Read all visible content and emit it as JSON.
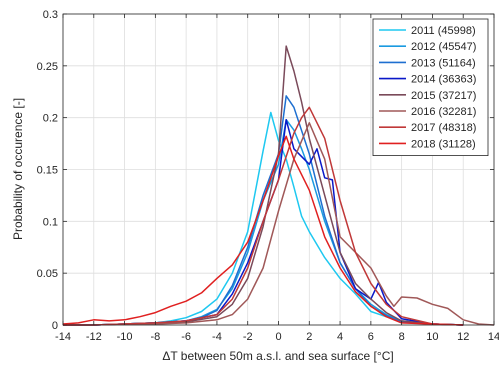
{
  "chart_data": {
    "type": "line",
    "title": "",
    "xlabel": "ΔT between 50m a.s.l. and sea surface [°C]",
    "ylabel": "Probability of occurence [-]",
    "xlim": [
      -14,
      14
    ],
    "ylim": [
      0,
      0.3
    ],
    "grid": true,
    "legend_position": "top-right",
    "x_ticks": [
      -14,
      -12,
      -10,
      -8,
      -6,
      -4,
      -2,
      0,
      2,
      4,
      6,
      8,
      10,
      12,
      14
    ],
    "y_ticks": [
      0,
      0.05,
      0.1,
      0.15,
      0.2,
      0.25,
      0.3
    ],
    "x_tick_labels": [
      "-14",
      "-12",
      "-10",
      "-8",
      "-6",
      "-4",
      "-2",
      "0",
      "2",
      "4",
      "6",
      "8",
      "10",
      "12",
      "14"
    ],
    "y_tick_labels": [
      "0",
      "0.05",
      "0.1",
      "0.15",
      "0.2",
      "0.25",
      "0.3"
    ],
    "series": [
      {
        "name": "2011 (45998)",
        "color": "#1ec8f0",
        "x": [
          -14,
          -12,
          -10,
          -8,
          -7,
          -6,
          -5,
          -4,
          -3,
          -2,
          -1,
          -0.5,
          0,
          0.5,
          1,
          1.5,
          2,
          3,
          4,
          5,
          6,
          7,
          8,
          10,
          12
        ],
        "y": [
          0,
          0,
          0.001,
          0.002,
          0.004,
          0.007,
          0.013,
          0.025,
          0.05,
          0.09,
          0.168,
          0.205,
          0.178,
          0.16,
          0.133,
          0.105,
          0.09,
          0.065,
          0.045,
          0.03,
          0.013,
          0.008,
          0.003,
          0.001,
          0
        ]
      },
      {
        "name": "2012 (45547)",
        "color": "#1a9ae0",
        "x": [
          -14,
          -12,
          -10,
          -8,
          -6,
          -5,
          -4,
          -3,
          -2,
          -1,
          0,
          0.5,
          1,
          1.5,
          2,
          3,
          4,
          5,
          6,
          7,
          8,
          10,
          12
        ],
        "y": [
          0,
          0,
          0.001,
          0.002,
          0.004,
          0.008,
          0.015,
          0.035,
          0.07,
          0.12,
          0.155,
          0.198,
          0.188,
          0.17,
          0.15,
          0.1,
          0.06,
          0.035,
          0.02,
          0.01,
          0.004,
          0.001,
          0
        ]
      },
      {
        "name": "2013 (51164)",
        "color": "#1e6fd0",
        "x": [
          -14,
          -12,
          -10,
          -8,
          -6,
          -5,
          -4,
          -3,
          -2,
          -1,
          0,
          0.5,
          1,
          2,
          3,
          4,
          5,
          6,
          7,
          8,
          10,
          12
        ],
        "y": [
          0,
          0,
          0.001,
          0.002,
          0.004,
          0.007,
          0.014,
          0.038,
          0.075,
          0.125,
          0.165,
          0.221,
          0.21,
          0.165,
          0.105,
          0.06,
          0.035,
          0.018,
          0.009,
          0.003,
          0.001,
          0
        ]
      },
      {
        "name": "2014 (36363)",
        "color": "#0a18c8",
        "x": [
          -14,
          -12,
          -10,
          -8,
          -6,
          -4,
          -3,
          -2,
          -1,
          0,
          0.5,
          1,
          2,
          2.5,
          3,
          3.5,
          4,
          5,
          6,
          6.5,
          7,
          8,
          10,
          12
        ],
        "y": [
          0,
          0,
          0.001,
          0.002,
          0.004,
          0.01,
          0.03,
          0.06,
          0.1,
          0.14,
          0.198,
          0.17,
          0.155,
          0.17,
          0.142,
          0.14,
          0.07,
          0.035,
          0.025,
          0.041,
          0.022,
          0.006,
          0.001,
          0
        ]
      },
      {
        "name": "2015 (37217)",
        "color": "#7a4a5a",
        "x": [
          -14,
          -12,
          -10,
          -8,
          -6,
          -4,
          -3,
          -2,
          -1,
          0,
          0.5,
          1,
          1.5,
          2,
          3,
          4,
          5,
          6,
          7,
          8,
          10,
          12
        ],
        "y": [
          0,
          0,
          0.001,
          0.002,
          0.003,
          0.008,
          0.02,
          0.045,
          0.095,
          0.165,
          0.269,
          0.245,
          0.215,
          0.18,
          0.125,
          0.07,
          0.04,
          0.025,
          0.012,
          0.004,
          0.001,
          0
        ]
      },
      {
        "name": "2016 (32281)",
        "color": "#a05858",
        "x": [
          -14,
          -12,
          -10,
          -8,
          -6,
          -4,
          -3,
          -2,
          -1,
          0,
          1,
          2,
          3,
          4,
          5,
          6,
          7,
          7.5,
          8,
          9,
          10,
          11,
          12,
          13,
          14
        ],
        "y": [
          0,
          0,
          0.001,
          0.001,
          0.002,
          0.005,
          0.01,
          0.025,
          0.055,
          0.11,
          0.16,
          0.195,
          0.16,
          0.085,
          0.07,
          0.055,
          0.028,
          0.018,
          0.027,
          0.026,
          0.02,
          0.016,
          0.005,
          0.001,
          0
        ]
      },
      {
        "name": "2017 (48318)",
        "color": "#c03838",
        "x": [
          -14,
          -12,
          -10,
          -8,
          -6,
          -4,
          -3,
          -2,
          -1,
          0,
          1,
          1.5,
          2,
          3,
          4,
          5,
          6,
          7,
          8,
          10,
          12
        ],
        "y": [
          0,
          0,
          0.001,
          0.002,
          0.004,
          0.01,
          0.025,
          0.055,
          0.1,
          0.14,
          0.185,
          0.2,
          0.21,
          0.18,
          0.12,
          0.07,
          0.04,
          0.02,
          0.008,
          0.001,
          0
        ]
      },
      {
        "name": "2018 (31128)",
        "color": "#e02020",
        "x": [
          -14,
          -13,
          -12,
          -11,
          -10,
          -9,
          -8,
          -7,
          -6,
          -5,
          -4,
          -3,
          -2,
          -1,
          0,
          0.5,
          1,
          2,
          3,
          4,
          5,
          6,
          7,
          8,
          10,
          12
        ],
        "y": [
          0.001,
          0.002,
          0.005,
          0.004,
          0.005,
          0.008,
          0.012,
          0.018,
          0.023,
          0.031,
          0.045,
          0.058,
          0.08,
          0.12,
          0.163,
          0.182,
          0.16,
          0.13,
          0.085,
          0.055,
          0.032,
          0.018,
          0.008,
          0.002,
          0.001,
          0
        ]
      }
    ]
  }
}
